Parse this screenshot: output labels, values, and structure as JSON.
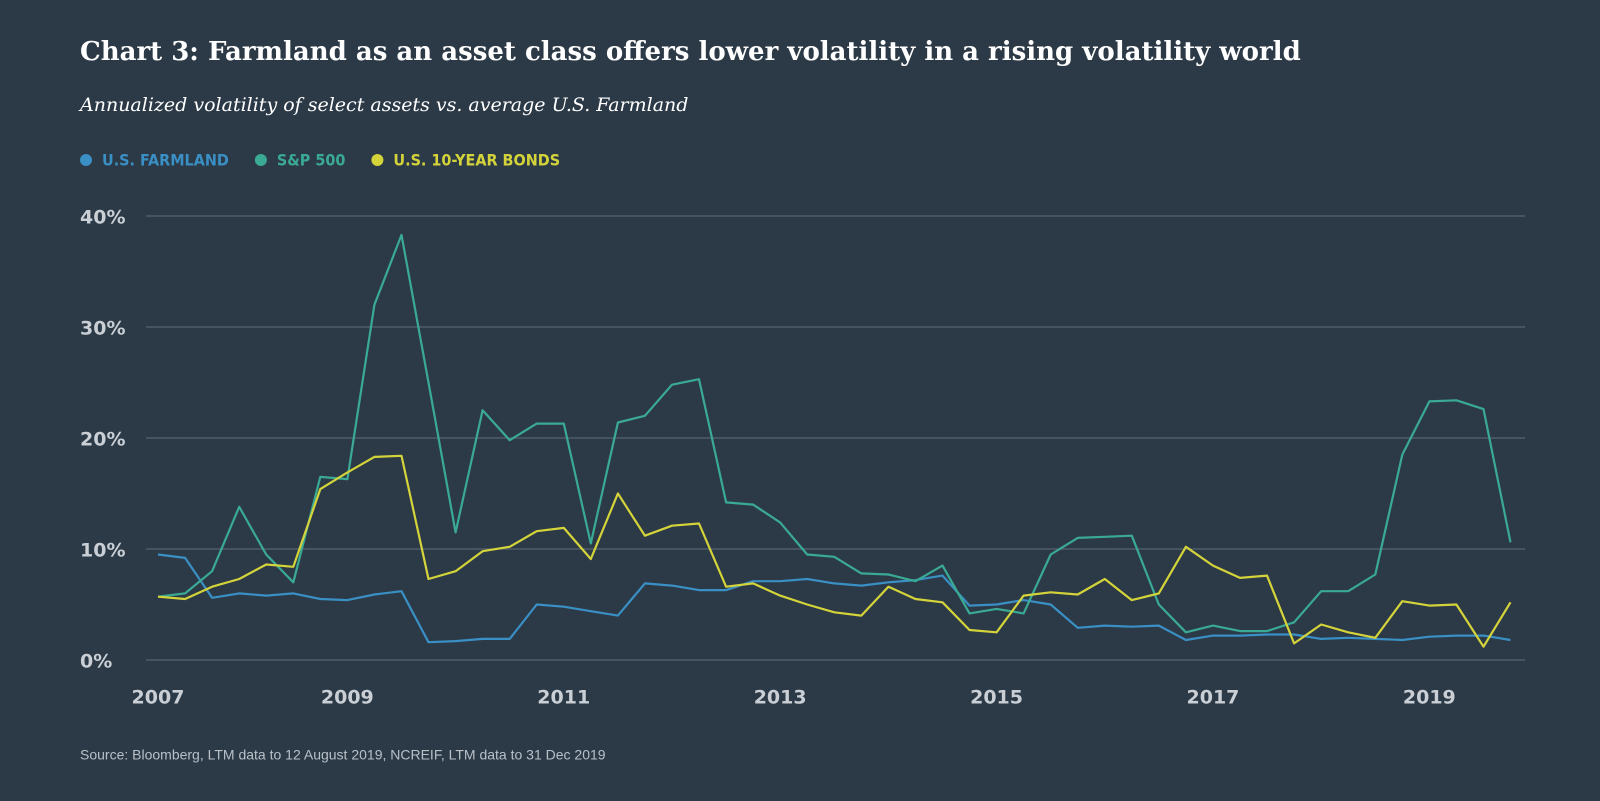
{
  "chart_data": {
    "type": "line",
    "title": "Chart 3: Farmland as an asset class offers lower volatility in a rising volatility world",
    "subtitle": "Annualized volatility of select assets vs. average U.S. Farmland",
    "source": "Source: Bloomberg, LTM data to 12 August 2019, NCREIF, LTM data to 31 Dec 2019",
    "categories": [
      "2007",
      null,
      null,
      null,
      null,
      null,
      null,
      "2009",
      null,
      null,
      null,
      null,
      null,
      null,
      null,
      "2011",
      null,
      null,
      null,
      null,
      null,
      null,
      null,
      "2013",
      null,
      null,
      null,
      null,
      null,
      null,
      null,
      "2015",
      null,
      null,
      null,
      null,
      null,
      null,
      null,
      "2017",
      null,
      null,
      null,
      null,
      null,
      null,
      null,
      "2019",
      null,
      null,
      null
    ],
    "series": [
      {
        "name": "U.S. FARMLAND",
        "color": "#3a8fc4",
        "values": [
          9.5,
          9.2,
          5.6,
          6.0,
          5.8,
          6.0,
          5.5,
          5.4,
          5.9,
          6.2,
          1.6,
          1.7,
          1.9,
          1.9,
          5.0,
          4.8,
          4.4,
          4.0,
          6.9,
          6.7,
          6.3,
          6.3,
          7.1,
          7.1,
          7.3,
          6.9,
          6.7,
          7.0,
          7.2,
          7.6,
          4.9,
          5.0,
          5.4,
          5.0,
          2.9,
          3.1,
          3.0,
          3.1,
          1.8,
          2.2,
          2.2,
          2.3,
          2.3,
          1.9,
          2.0,
          1.9,
          1.8,
          2.1,
          2.2,
          2.2,
          1.8
        ]
      },
      {
        "name": "S&P 500",
        "color": "#3aaa94",
        "values": [
          5.7,
          6.0,
          8.0,
          13.8,
          9.5,
          7.0,
          16.5,
          16.3,
          32,
          38.3,
          25,
          11.5,
          22.5,
          19.8,
          21.3,
          21.3,
          10.5,
          21.4,
          22,
          24.8,
          25.3,
          14.2,
          14,
          12.4,
          9.5,
          9.3,
          7.8,
          7.7,
          7.1,
          8.5,
          4.2,
          4.6,
          4.2,
          9.5,
          11,
          11.1,
          11.2,
          5,
          2.5,
          3.1,
          2.6,
          2.6,
          3.4,
          6.2,
          6.2,
          7.7,
          18.5,
          23.3,
          23.4,
          22.6,
          10.6
        ]
      },
      {
        "name": "U.S. 10-YEAR BONDS",
        "color": "#d4d43a",
        "values": [
          5.7,
          5.5,
          6.6,
          7.3,
          8.6,
          8.4,
          15.4,
          16.9,
          18.3,
          18.4,
          7.3,
          8,
          9.8,
          10.2,
          11.6,
          11.9,
          9.1,
          15,
          11.2,
          12.1,
          12.3,
          6.6,
          6.9,
          5.8,
          5,
          4.3,
          4,
          6.6,
          5.5,
          5.2,
          2.7,
          2.5,
          5.8,
          6.1,
          5.9,
          7.3,
          5.4,
          6,
          10.2,
          8.5,
          7.4,
          7.6,
          1.5,
          3.2,
          2.5,
          2,
          5.3,
          4.9,
          5,
          1.2,
          5.2
        ]
      }
    ],
    "ylim": [
      0,
      40
    ],
    "yticks": [
      {
        "value": 0,
        "label": "0%"
      },
      {
        "value": 10,
        "label": "10%"
      },
      {
        "value": 20,
        "label": "20%"
      },
      {
        "value": 30,
        "label": "30%"
      },
      {
        "value": 40,
        "label": "40%"
      }
    ],
    "grid": true
  }
}
